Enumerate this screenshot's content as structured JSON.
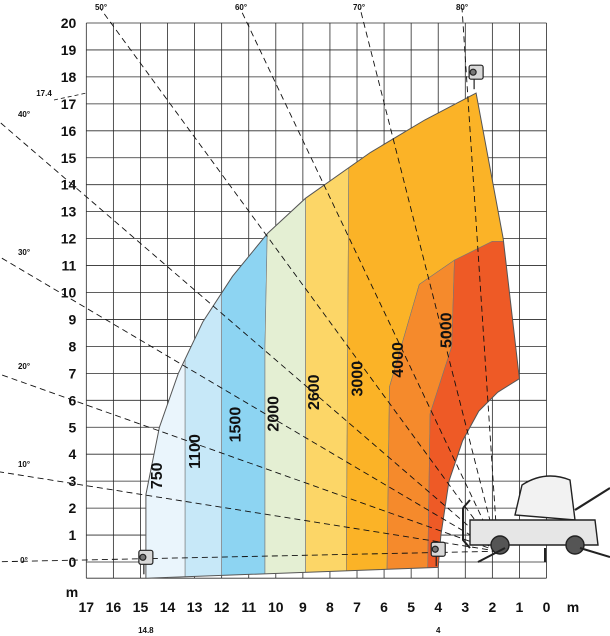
{
  "chart_data": {
    "type": "area",
    "title": "",
    "xlabel": "m",
    "ylabel": "m",
    "xlim": [
      0,
      17
    ],
    "ylim": [
      -0.6,
      20
    ],
    "x_ticks": [
      17,
      16,
      15,
      14,
      13,
      12,
      11,
      10,
      9,
      8,
      7,
      6,
      5,
      4,
      3,
      2,
      1,
      0
    ],
    "y_ticks": [
      20,
      19,
      18,
      17,
      16,
      15,
      14,
      13,
      12,
      11,
      10,
      9,
      8,
      7,
      6,
      5,
      4,
      3,
      2,
      1,
      0
    ],
    "x_unit": "m",
    "y_unit": "m",
    "grid": true,
    "annotations": {
      "max_height": "17.4",
      "max_reach": "14.8",
      "min_reach": "4"
    },
    "boom_angles": [
      {
        "label": "0°",
        "angle": 0
      },
      {
        "label": "10°",
        "angle": 10
      },
      {
        "label": "20°",
        "angle": 20
      },
      {
        "label": "30°",
        "angle": 30
      },
      {
        "label": "40°",
        "angle": 40
      },
      {
        "label": "50°",
        "angle": 50
      },
      {
        "label": "60°",
        "angle": 60
      },
      {
        "label": "70°",
        "angle": 70
      },
      {
        "label": "80°",
        "angle": 80
      }
    ],
    "envelope": {
      "outer": [
        [
          2.6,
          17.4
        ],
        [
          4.5,
          16.4
        ],
        [
          6.5,
          15.2
        ],
        [
          8.9,
          13.5
        ],
        [
          10.3,
          12.2
        ],
        [
          11.6,
          10.6
        ],
        [
          12.7,
          8.9
        ],
        [
          13.6,
          7.0
        ],
        [
          14.3,
          5.0
        ],
        [
          14.8,
          2.5
        ],
        [
          14.8,
          0
        ],
        [
          14.8,
          -0.6
        ]
      ],
      "inner": [
        [
          1.0,
          6.8
        ],
        [
          1.8,
          6.3
        ],
        [
          2.5,
          5.6
        ],
        [
          3.1,
          4.5
        ],
        [
          3.6,
          3.0
        ],
        [
          3.9,
          1.0
        ],
        [
          4.0,
          -0.2
        ]
      ],
      "bottom": [
        [
          14.8,
          -0.6
        ],
        [
          4.0,
          -0.2
        ]
      ],
      "right_edge": [
        [
          2.6,
          17.4
        ],
        [
          1.6,
          12.0
        ],
        [
          1.0,
          6.8
        ]
      ]
    },
    "load_zones": [
      {
        "load": "750",
        "color": "#eaf5fc"
      },
      {
        "load": "1100",
        "color": "#c7e8f8"
      },
      {
        "load": "1500",
        "color": "#8dd4f2"
      },
      {
        "load": "2000",
        "color": "#e4efd3"
      },
      {
        "load": "2600",
        "color": "#fcd667"
      },
      {
        "load": "3000",
        "color": "#fbb327"
      },
      {
        "load": "4000",
        "color": "#f58a2c"
      },
      {
        "load": "5000",
        "color": "#ee5a26"
      }
    ]
  },
  "labels": {
    "x_unit_label": "m",
    "y_unit_label": "m",
    "max_height_marker": "17.4",
    "max_reach_marker": "14.8",
    "min_reach_marker": "4"
  }
}
